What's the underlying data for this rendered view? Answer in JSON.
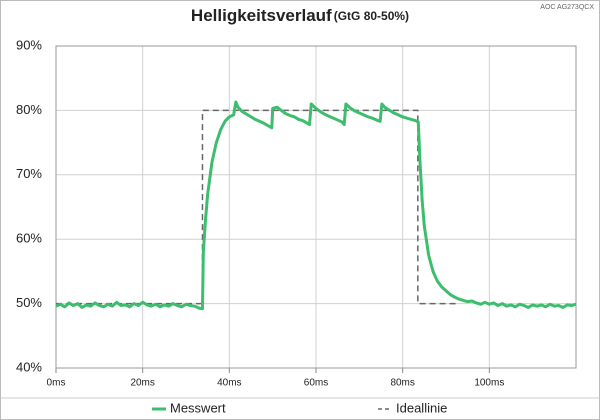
{
  "chart_data": {
    "type": "line",
    "title": "Helligkeitsverlauf",
    "subtitle": "(GtG 80-50%)",
    "annotation": "AOC AG273QCX",
    "xlim": [
      0,
      120
    ],
    "ylim": [
      40,
      90
    ],
    "grid": true,
    "legend": "bottom",
    "xticks": [
      {
        "value": 0,
        "label": "0ms"
      },
      {
        "value": 20,
        "label": "20ms"
      },
      {
        "value": 40,
        "label": "40ms"
      },
      {
        "value": 60,
        "label": "60ms"
      },
      {
        "value": 80,
        "label": "80ms"
      },
      {
        "value": 100,
        "label": "100ms"
      }
    ],
    "yticks": [
      {
        "value": 40,
        "label": "40%"
      },
      {
        "value": 50,
        "label": "50%"
      },
      {
        "value": 60,
        "label": "60%"
      },
      {
        "value": 70,
        "label": "70%"
      },
      {
        "value": 80,
        "label": "80%"
      },
      {
        "value": 90,
        "label": "90%"
      }
    ],
    "series": [
      {
        "name": "Messwert",
        "color": "#3dbd6e",
        "dash": false,
        "x": [
          0,
          1,
          2,
          3,
          4,
          5,
          6,
          7,
          8,
          9,
          10,
          11,
          12,
          13,
          14,
          15,
          16,
          17,
          18,
          19,
          20,
          21,
          22,
          23,
          24,
          25,
          26,
          27,
          28,
          29,
          30,
          31,
          32,
          33,
          33.8,
          34,
          34.5,
          35,
          36,
          37,
          38,
          39,
          40,
          41,
          41.5,
          42,
          43,
          44,
          45,
          46,
          47,
          48,
          49,
          49.8,
          50,
          51,
          52,
          53,
          54,
          55,
          56,
          57,
          58,
          58.5,
          58.9,
          60,
          61,
          62,
          63,
          64,
          65,
          66,
          66.5,
          66.9,
          68,
          69,
          70,
          71,
          72,
          73,
          74,
          74.8,
          75.2,
          76,
          77,
          78,
          79,
          80,
          81,
          82,
          83,
          83.6,
          84,
          84.5,
          85,
          86,
          87,
          88,
          89,
          90,
          91,
          92,
          93,
          94,
          95,
          96,
          97,
          98,
          99,
          100,
          101,
          102,
          103,
          104,
          105,
          106,
          107,
          108,
          109,
          110,
          111,
          112,
          113,
          114,
          115,
          116,
          117,
          118,
          119,
          120
        ],
        "values": [
          49.6,
          49.9,
          49.5,
          50.1,
          49.7,
          50.0,
          49.4,
          49.8,
          49.6,
          50.1,
          49.7,
          49.5,
          49.9,
          49.6,
          50.2,
          49.7,
          49.8,
          49.5,
          50.0,
          49.7,
          50.2,
          49.8,
          49.6,
          49.9,
          49.5,
          49.8,
          49.6,
          50.0,
          49.7,
          49.5,
          49.9,
          49.7,
          49.6,
          49.3,
          49.2,
          58,
          63,
          67,
          72,
          75,
          77,
          78.3,
          79,
          79.3,
          81.3,
          80.5,
          79.8,
          79.4,
          79.0,
          78.6,
          78.3,
          78.0,
          77.6,
          77.3,
          80.3,
          80.5,
          80.0,
          79.5,
          79.2,
          79.0,
          78.6,
          78.4,
          78.0,
          77.8,
          81.0,
          80.3,
          79.8,
          79.4,
          79.1,
          78.8,
          78.5,
          78.2,
          77.8,
          81.0,
          80.3,
          79.9,
          79.6,
          79.3,
          79.0,
          78.8,
          78.5,
          78.3,
          81.0,
          80.4,
          80.0,
          79.6,
          79.3,
          79.0,
          78.8,
          78.6,
          78.4,
          78.2,
          72,
          66,
          62,
          57.5,
          55,
          53.5,
          52.6,
          52,
          51.4,
          51,
          50.7,
          50.5,
          50.3,
          50.4,
          50.1,
          49.9,
          50.2,
          49.9,
          50.1,
          49.7,
          50.0,
          49.6,
          49.8,
          49.5,
          49.9,
          49.7,
          49.4,
          49.8,
          49.6,
          49.8,
          49.5,
          49.9,
          49.6,
          49.7,
          49.4,
          49.8,
          49.7,
          49.9
        ]
      },
      {
        "name": "Ideallinie",
        "color": "#666666",
        "dash": true,
        "x": [
          0,
          33.8,
          33.8,
          83.5,
          83.5,
          93
        ],
        "values": [
          50,
          50,
          80,
          80,
          50,
          50
        ]
      }
    ]
  }
}
